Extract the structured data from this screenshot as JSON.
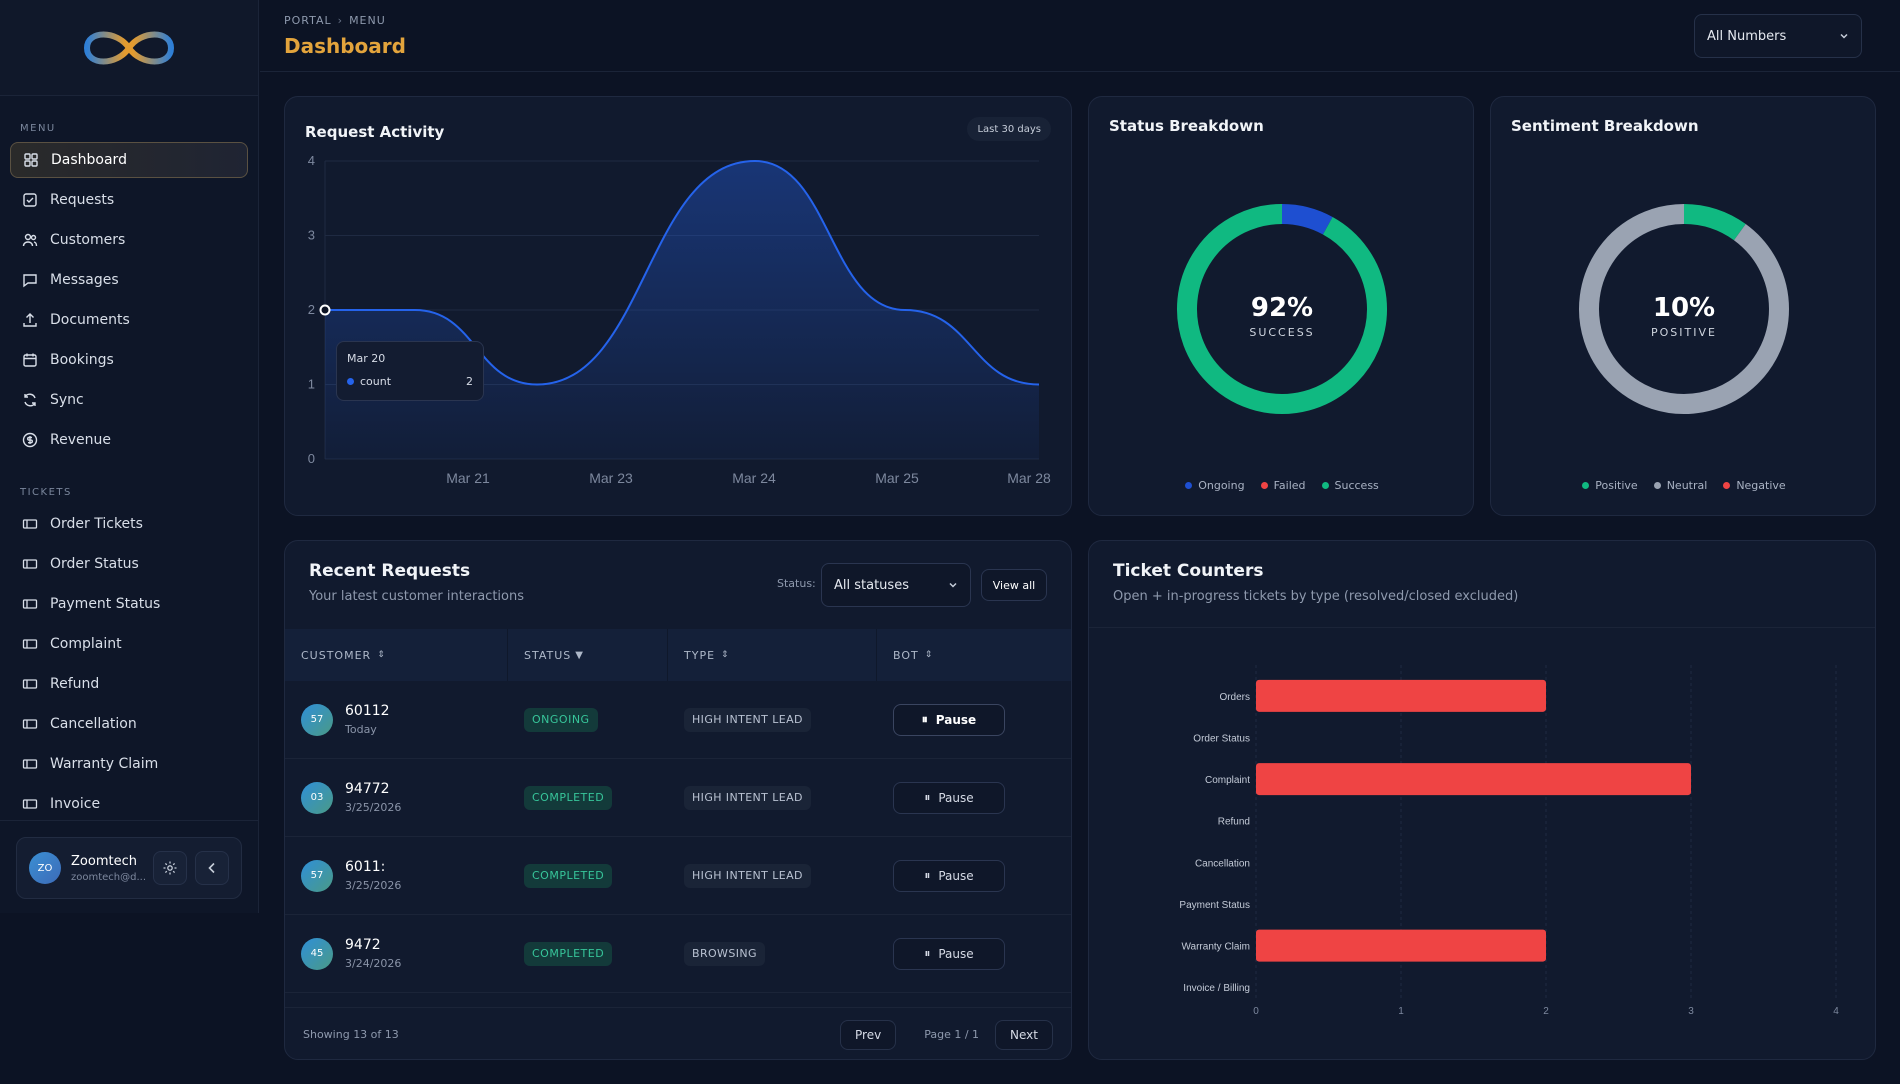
{
  "sidebar": {
    "menu_label": "MENU",
    "menu_items": [
      {
        "label": "Dashboard",
        "icon": "grid-icon",
        "active": true
      },
      {
        "label": "Requests",
        "icon": "check-square-icon"
      },
      {
        "label": "Customers",
        "icon": "users-icon"
      },
      {
        "label": "Messages",
        "icon": "message-icon"
      },
      {
        "label": "Documents",
        "icon": "upload-icon"
      },
      {
        "label": "Bookings",
        "icon": "calendar-icon"
      },
      {
        "label": "Sync",
        "icon": "refresh-icon"
      },
      {
        "label": "Revenue",
        "icon": "dollar-circle-icon"
      }
    ],
    "tickets_label": "TICKETS",
    "ticket_items": [
      {
        "label": "Order Tickets"
      },
      {
        "label": "Order Status"
      },
      {
        "label": "Payment Status"
      },
      {
        "label": "Complaint"
      },
      {
        "label": "Refund"
      },
      {
        "label": "Cancellation"
      },
      {
        "label": "Warranty Claim"
      },
      {
        "label": "Invoice"
      }
    ],
    "profile": {
      "initials": "ZO",
      "name": "Zoomtech",
      "email": "zoomtech@d..."
    }
  },
  "header": {
    "breadcrumb": [
      "PORTAL",
      "MENU"
    ],
    "title": "Dashboard",
    "numbers_select": "All Numbers"
  },
  "request_activity": {
    "title": "Request Activity",
    "range": "Last 30 days",
    "tooltip": {
      "date": "Mar 20",
      "series": "count",
      "value": "2"
    }
  },
  "status_breakdown": {
    "title": "Status Breakdown",
    "center_value": "92%",
    "center_label": "SUCCESS",
    "legend": [
      {
        "label": "Ongoing",
        "color": "#1e4fd1"
      },
      {
        "label": "Failed",
        "color": "#ef4444"
      },
      {
        "label": "Success",
        "color": "#10b981"
      }
    ]
  },
  "sentiment_breakdown": {
    "title": "Sentiment Breakdown",
    "center_value": "10%",
    "center_label": "POSITIVE",
    "legend": [
      {
        "label": "Positive",
        "color": "#10b981"
      },
      {
        "label": "Neutral",
        "color": "#9aa3b2"
      },
      {
        "label": "Negative",
        "color": "#ef4444"
      }
    ]
  },
  "recent_requests": {
    "title": "Recent Requests",
    "subtitle": "Your latest customer interactions",
    "status_label": "Status:",
    "status_select": "All statuses",
    "view_all": "View all",
    "columns": [
      "CUSTOMER",
      "STATUS",
      "TYPE",
      "BOT"
    ],
    "rows": [
      {
        "initials": "57",
        "name": "60112",
        "date": "Today",
        "status": "ONGOING",
        "type": "HIGH INTENT LEAD",
        "action": "Pause"
      },
      {
        "initials": "03",
        "name": "94772",
        "date": "3/25/2026",
        "status": "COMPLETED",
        "type": "HIGH INTENT LEAD",
        "action": "Pause"
      },
      {
        "initials": "57",
        "name": "6011:",
        "date": "3/25/2026",
        "status": "COMPLETED",
        "type": "HIGH INTENT LEAD",
        "action": "Pause"
      },
      {
        "initials": "45",
        "name": "9472",
        "date": "3/24/2026",
        "status": "COMPLETED",
        "type": "BROWSING",
        "action": "Pause"
      }
    ],
    "footer": {
      "showing": "Showing 13 of 13",
      "prev": "Prev",
      "page": "Page 1 / 1",
      "next": "Next"
    }
  },
  "ticket_counters": {
    "title": "Ticket Counters",
    "subtitle": "Open + in-progress tickets by type (resolved/closed excluded)"
  },
  "chart_data": [
    {
      "type": "area",
      "title": "Request Activity",
      "x": [
        "Mar 20",
        "Mar 21",
        "Mar 23",
        "Mar 24",
        "Mar 25",
        "Mar 28"
      ],
      "x_ticks": [
        "Mar 21",
        "Mar 23",
        "Mar 24",
        "Mar 25",
        "Mar 28"
      ],
      "series": [
        {
          "name": "count",
          "values": [
            2,
            2,
            1,
            4,
            2,
            1
          ]
        }
      ],
      "ylim": [
        0,
        4
      ],
      "y_ticks": [
        0,
        1,
        2,
        3,
        4
      ],
      "grid": true,
      "color": "#2563eb"
    },
    {
      "type": "pie",
      "title": "Status Breakdown",
      "labels": [
        "Ongoing",
        "Failed",
        "Success"
      ],
      "values": [
        8,
        0,
        92
      ],
      "colors": [
        "#1e4fd1",
        "#ef4444",
        "#10b981"
      ]
    },
    {
      "type": "pie",
      "title": "Sentiment Breakdown",
      "labels": [
        "Positive",
        "Neutral",
        "Negative"
      ],
      "values": [
        10,
        90,
        0
      ],
      "colors": [
        "#10b981",
        "#9aa3b2",
        "#ef4444"
      ]
    },
    {
      "type": "bar",
      "orientation": "horizontal",
      "title": "Ticket Counters",
      "categories": [
        "Orders",
        "Order Status",
        "Complaint",
        "Refund",
        "Cancellation",
        "Payment Status",
        "Warranty Claim",
        "Invoice / Billing"
      ],
      "values": [
        2,
        0,
        3,
        0,
        0,
        0,
        2,
        0
      ],
      "xlim": [
        0,
        4
      ],
      "x_ticks": [
        0,
        1,
        2,
        3,
        4
      ],
      "color": "#ef4444"
    }
  ]
}
